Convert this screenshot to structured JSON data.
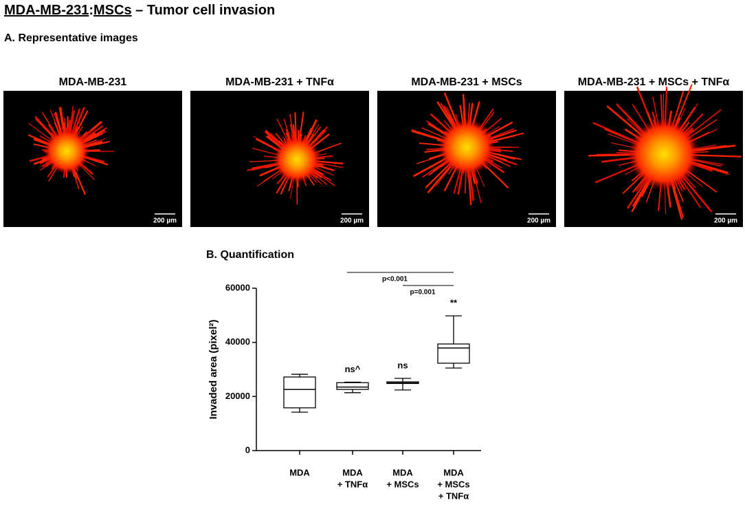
{
  "title_parts": [
    "MDA-MB-231",
    ":",
    "MSCs",
    " – Tumor cell invasion"
  ],
  "panel_a": {
    "label": "A. Representative images",
    "images": [
      {
        "label": "MDA-MB-231",
        "scale_bar": "200 µm"
      },
      {
        "label": "MDA-MB-231 + TNFα",
        "scale_bar": "200 µm"
      },
      {
        "label": "MDA-MB-231 + MSCs",
        "scale_bar": "200 µm"
      },
      {
        "label": "MDA-MB-231 + MSCs + TNFα",
        "scale_bar": "200 µm"
      }
    ]
  },
  "chart_data": {
    "type": "box",
    "title": "B. Quantification",
    "ylabel": "Invaded area (pixel²)",
    "categories": [
      [
        "MDA"
      ],
      [
        "MDA",
        "+ TNFα"
      ],
      [
        "MDA",
        "+ MSCs"
      ],
      [
        "MDA",
        "+ MSCs",
        "+ TNFα"
      ]
    ],
    "boxes": [
      {
        "min": 14200,
        "q1": 15800,
        "median": 22600,
        "q3": 27200,
        "max": 28200
      },
      {
        "min": 21400,
        "q1": 22600,
        "median": 23500,
        "q3": 25100,
        "max": 25300
      },
      {
        "min": 22400,
        "q1": 24800,
        "median": 25000,
        "q3": 25400,
        "max": 26700
      },
      {
        "min": 30500,
        "q1": 32300,
        "median": 37900,
        "q3": 39400,
        "max": 49800
      }
    ],
    "point_labels": [
      null,
      "ns^",
      "ns",
      "**"
    ],
    "significance": [
      "p<0.001",
      "p=0.001"
    ],
    "color": "#000000",
    "ylim": [
      0,
      60000
    ],
    "yticks": [
      0,
      20000,
      40000,
      60000
    ]
  }
}
